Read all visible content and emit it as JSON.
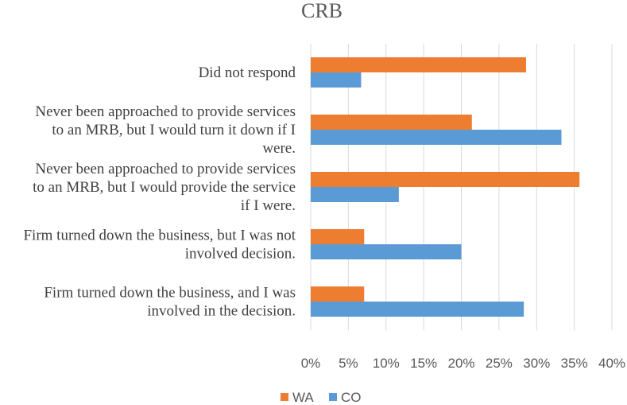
{
  "chart_data": {
    "type": "bar",
    "orientation": "horizontal",
    "title": "CRB",
    "categories": [
      "Did not respond",
      "Never been approached to provide services to an MRB, but I would turn it down if I were.",
      "Never been approached to provide services to an MRB, but I would provide the service if I were.",
      "Firm turned down the business, but I was not involved decision.",
      "Firm turned down the business, and I was involved in the decision."
    ],
    "category_lines": [
      [
        "Did not respond"
      ],
      [
        "Never been approached to provide services",
        "to an MRB, but I would turn it down if I",
        "were."
      ],
      [
        "Never been approached to provide services",
        "to an MRB, but I would provide the service",
        "if I were."
      ],
      [
        "Firm turned down the business, but I was not",
        "involved decision."
      ],
      [
        "Firm turned down the business, and I was",
        "involved in the decision."
      ]
    ],
    "series": [
      {
        "name": "WA",
        "color": "#ED7D31",
        "values": [
          28.6,
          21.4,
          35.7,
          7.1,
          7.1
        ]
      },
      {
        "name": "CO",
        "color": "#5B9BD5",
        "values": [
          6.7,
          33.3,
          11.7,
          20.0,
          28.3
        ]
      }
    ],
    "xlim": [
      0,
      40
    ],
    "xticks": [
      "0%",
      "5%",
      "10%",
      "15%",
      "20%",
      "25%",
      "30%",
      "35%",
      "40%"
    ],
    "xtick_values": [
      0,
      5,
      10,
      15,
      20,
      25,
      30,
      35,
      40
    ],
    "grid": true,
    "legend_position": "bottom",
    "legend": [
      "WA",
      "CO"
    ]
  }
}
